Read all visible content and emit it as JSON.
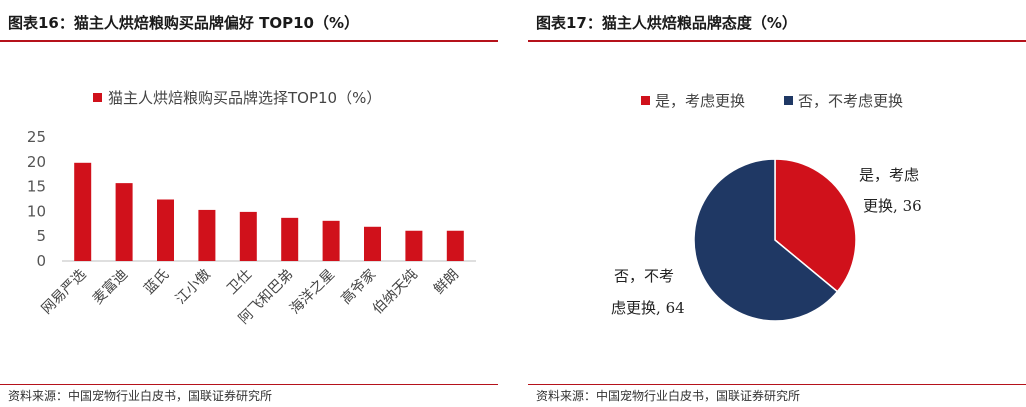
{
  "left": {
    "title": "图表16：猫主人烘焙粮购买品牌偏好 TOP10（%）",
    "source": "资料来源：中国宠物行业白皮书，国联证券研究所"
  },
  "right": {
    "title": "图表17：猫主人烘焙粮品牌态度（%）",
    "source": "资料来源：中国宠物行业白皮书，国联证券研究所"
  },
  "colors": {
    "accent": "#b5121b",
    "bar": "#d0111b",
    "yes": "#d0111b",
    "no": "#1f3864",
    "axis": "#bfbfbf"
  },
  "chart_data": [
    {
      "type": "bar",
      "title": "",
      "legend": "猫主人烘焙粮购买品牌选择TOP10（%）",
      "categories": [
        "网易严选",
        "麦富迪",
        "蓝氏",
        "江小傲",
        "卫仕",
        "阿飞和巴弟",
        "海洋之星",
        "高爷家",
        "伯纳天纯",
        "鲜朗"
      ],
      "values": [
        19.8,
        15.7,
        12.4,
        10.3,
        9.9,
        8.7,
        8.1,
        6.9,
        6.1,
        6.1
      ],
      "yticks": [
        "0",
        "5",
        "10",
        "15",
        "20",
        "25"
      ],
      "ylim": [
        0,
        25
      ],
      "legend_position": "top"
    },
    {
      "type": "pie",
      "title": "",
      "slices": [
        {
          "name": "是，考虑更换",
          "value": 36,
          "label_line1": "是，考虑",
          "label_line2": "更换",
          "value_label": "36"
        },
        {
          "name": "否，不考虑更换",
          "value": 64,
          "label_line1": "否，不考",
          "label_line2": "虑更换",
          "value_label": "64"
        }
      ],
      "legend": [
        "是，考虑更换",
        "否，不考虑更换"
      ],
      "legend_position": "top"
    }
  ]
}
